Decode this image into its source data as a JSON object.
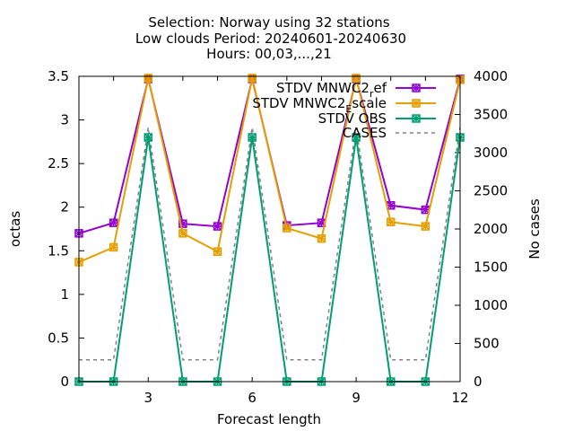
{
  "chart_data": {
    "type": "line",
    "title_lines": [
      "Selection: Norway using     32 stations",
      "Low clouds   Period: 20240601-20240630",
      "Hours: 00,03,...,21"
    ],
    "xlabel": "Forecast length",
    "ylabel": "octas",
    "y2label": "No cases",
    "xlim": [
      1,
      12
    ],
    "ylim": [
      0,
      3.5
    ],
    "y2lim": [
      0,
      4000
    ],
    "x_ticks": [
      3,
      6,
      9,
      12
    ],
    "y_ticks": [
      "0",
      "0.5",
      "1",
      "1.5",
      "2",
      "2.5",
      "3",
      "3.5"
    ],
    "y2_ticks": [
      "0",
      "500",
      "1000",
      "1500",
      "2000",
      "2500",
      "3000",
      "3500",
      "4000"
    ],
    "x": [
      1,
      2,
      3,
      4,
      5,
      6,
      7,
      8,
      9,
      10,
      11,
      12
    ],
    "series": [
      {
        "name": "STDV MNWC2_ref",
        "legend_main": "STDV MNWC2",
        "legend_sub": "r",
        "legend_tail": "ef",
        "color": "#9400d3",
        "axis": "y",
        "values": [
          1.7,
          1.82,
          3.47,
          1.81,
          1.78,
          3.47,
          1.79,
          1.82,
          3.47,
          2.02,
          1.97,
          3.47
        ]
      },
      {
        "name": "STDV MNWC2_Escale",
        "legend_main": "STDV MNWC2",
        "legend_sub": "E",
        "legend_tail": "scale",
        "color": "#e69f00",
        "axis": "y",
        "values": [
          1.37,
          1.54,
          3.48,
          1.7,
          1.49,
          3.48,
          1.76,
          1.64,
          3.48,
          1.83,
          1.78,
          3.46
        ]
      },
      {
        "name": "STDV OBS",
        "legend_main": "STDV OBS",
        "legend_sub": "",
        "legend_tail": "",
        "color": "#009e73",
        "axis": "y",
        "values": [
          0,
          0,
          2.8,
          0,
          0,
          2.8,
          0,
          0,
          2.8,
          0,
          0,
          2.8
        ]
      },
      {
        "name": "CASES",
        "legend_main": "CASES",
        "legend_sub": "",
        "legend_tail": "",
        "color": "#808080",
        "axis": "y2",
        "dashed": true,
        "values": [
          285,
          285,
          3330,
          285,
          285,
          3330,
          285,
          285,
          3330,
          285,
          285,
          3330
        ]
      }
    ],
    "legend_position": "top-right",
    "grid": false
  }
}
